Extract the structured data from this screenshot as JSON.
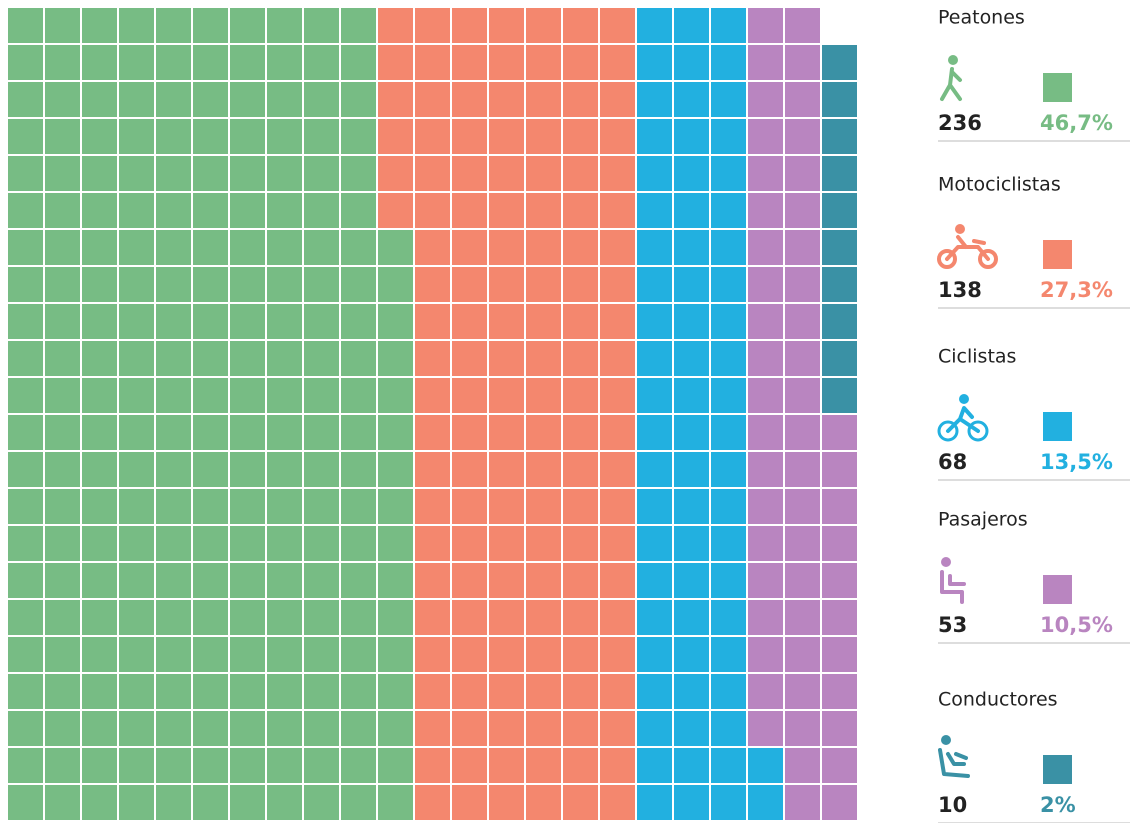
{
  "chart_data": {
    "type": "waffle",
    "series": [
      {
        "name": "Peatones",
        "color": "#77bc84",
        "value": 236,
        "percent_label": "46,7%"
      },
      {
        "name": "Motociclistas",
        "color": "#f4876e",
        "value": 138,
        "percent_label": "27,3%"
      },
      {
        "name": "Ciclistas",
        "color": "#22b0e0",
        "value": 68,
        "percent_label": "13,5%"
      },
      {
        "name": "Pasajeros",
        "color": "#b985c0",
        "value": 53,
        "percent_label": "10,5%"
      },
      {
        "name": "Conductores",
        "color": "#3a91a5",
        "value": 10,
        "percent_label": "2%"
      }
    ]
  }
}
